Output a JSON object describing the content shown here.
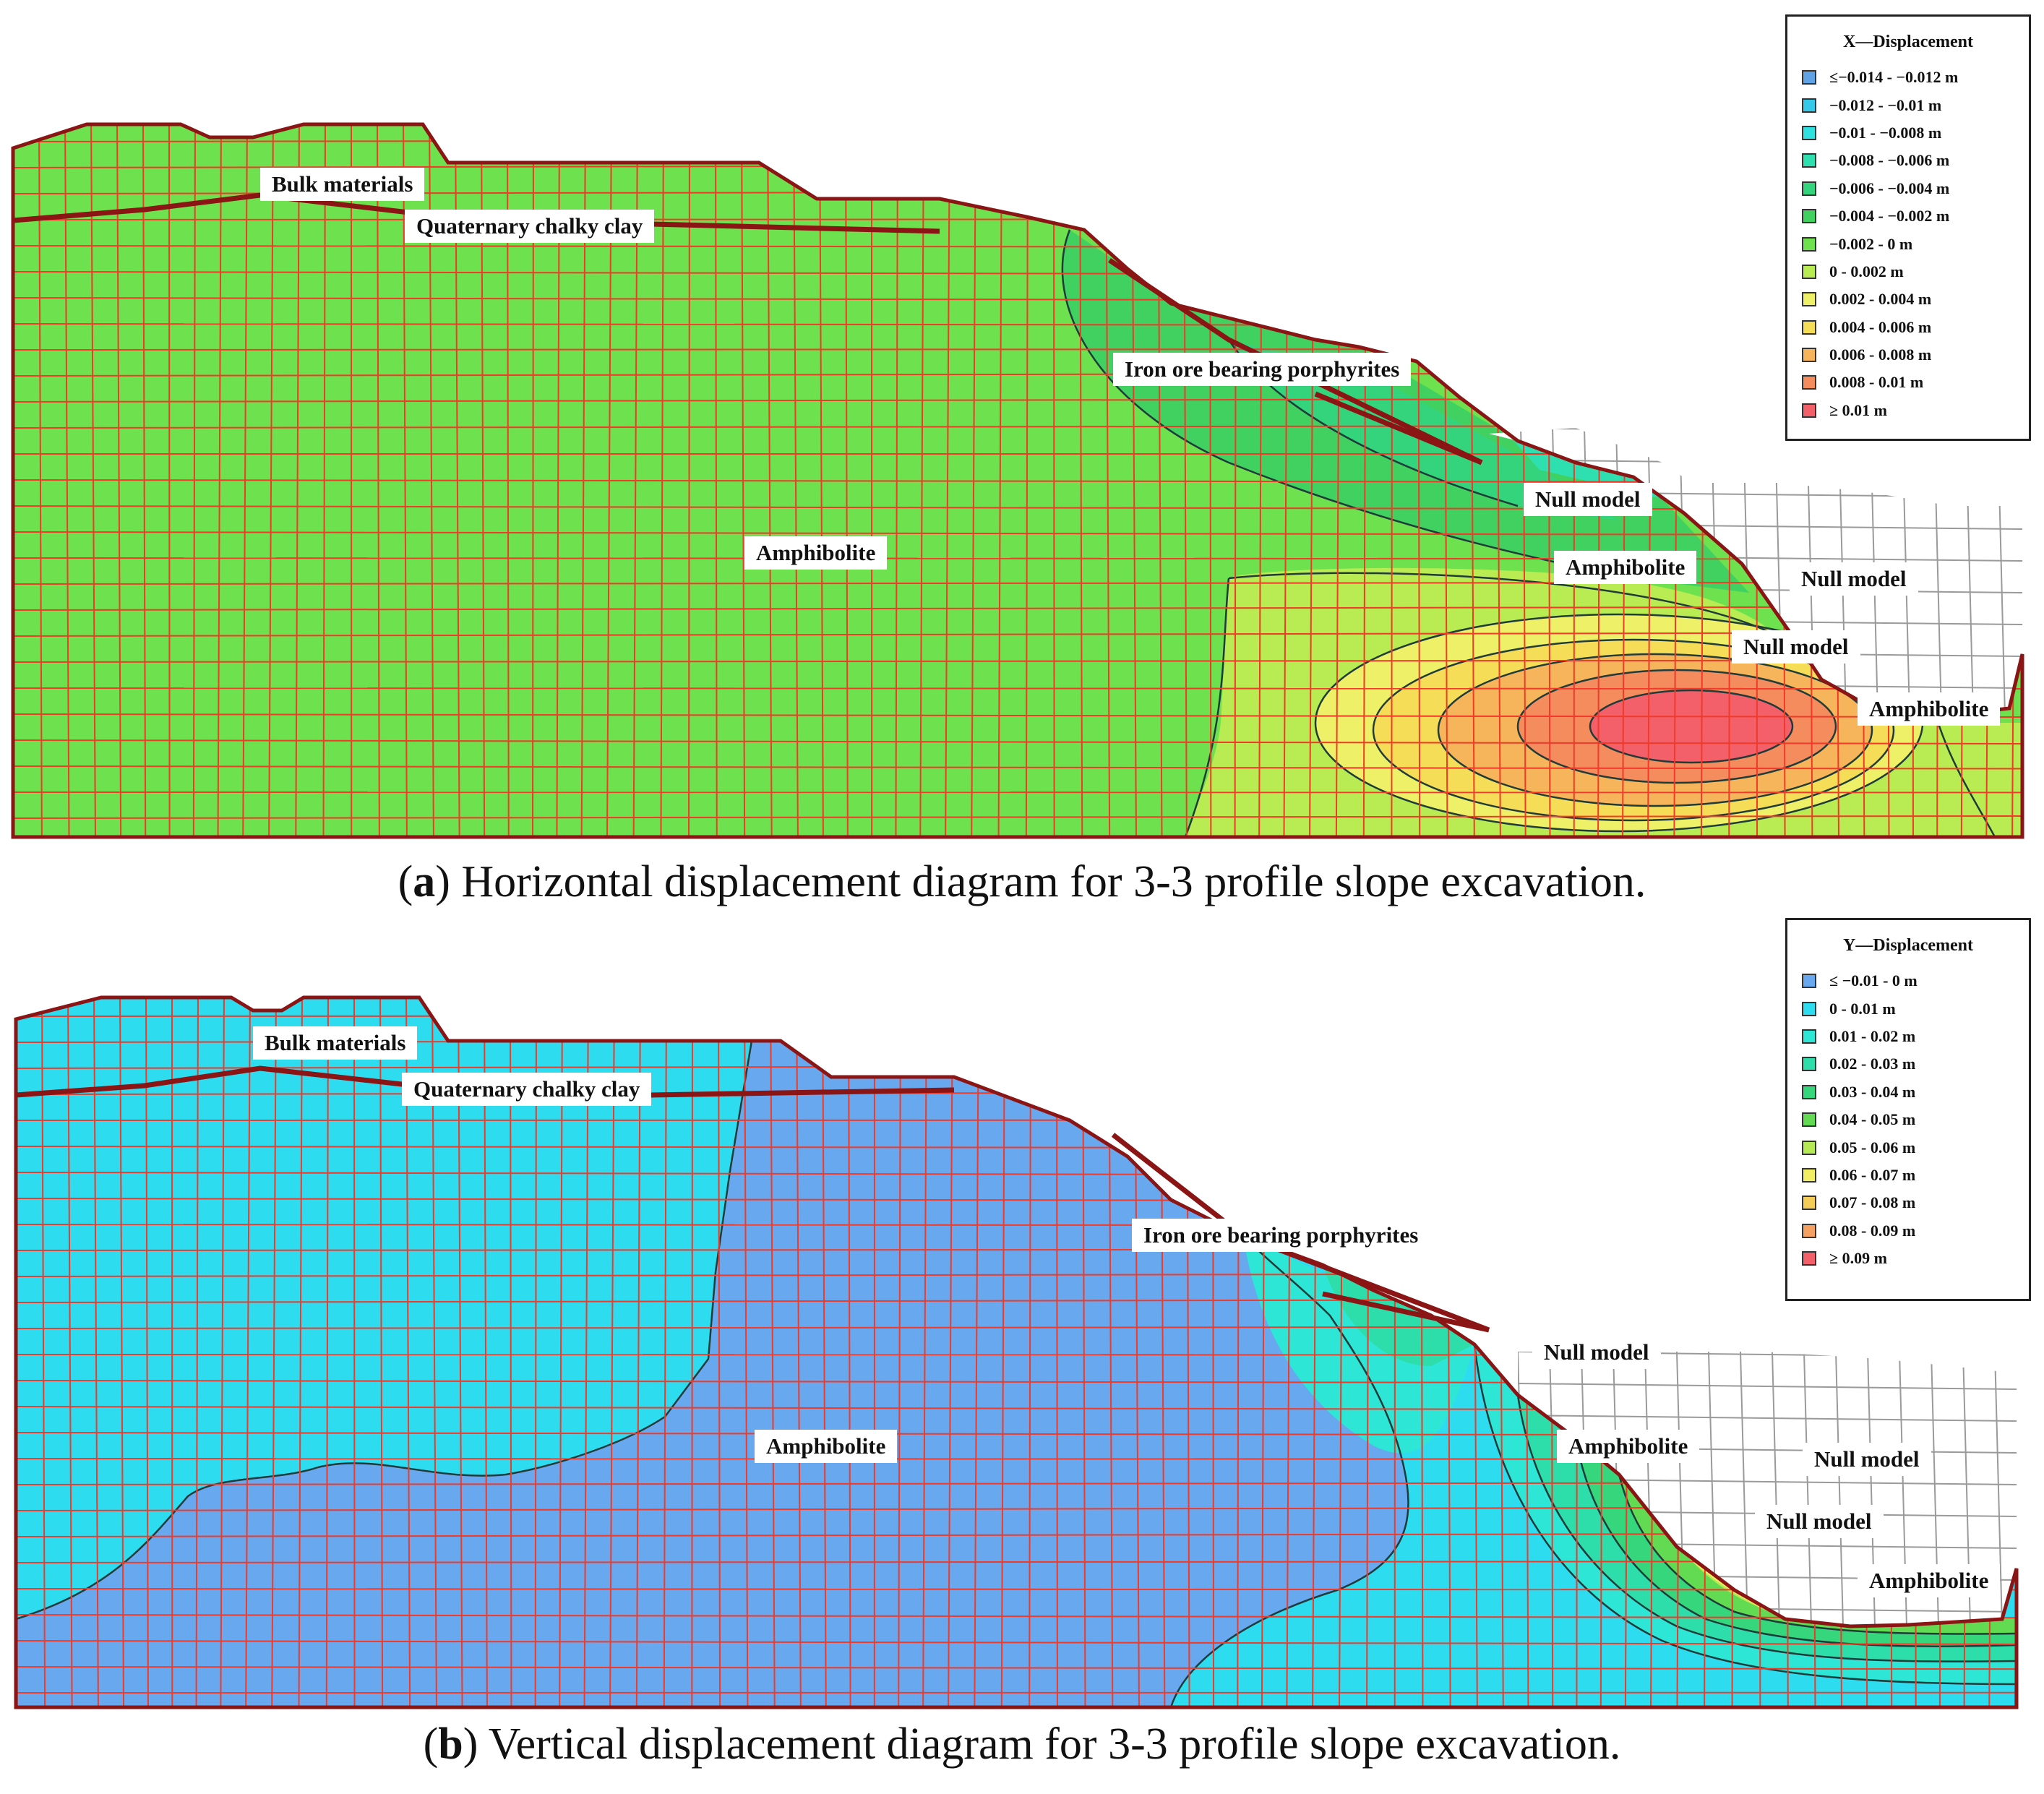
{
  "panel_a": {
    "labels": {
      "bulk": "Bulk materials",
      "clay": "Quaternary chalky clay",
      "iron": "Iron ore bearing porphyrites",
      "amph_main": "Amphibolite",
      "null1": "Null model",
      "amph2": "Amphibolite",
      "null2": "Null model",
      "null3": "Null model",
      "amph3": "Amphibolite"
    },
    "legend": {
      "title": "X—Displacement",
      "items": [
        {
          "label": "≤−0.014 - −0.012 m",
          "color": "#5fa3e6"
        },
        {
          "label": "−0.012 - −0.01 m",
          "color": "#36c8e8"
        },
        {
          "label": "−0.01 - −0.008 m",
          "color": "#2ee0e0"
        },
        {
          "label": "−0.008 - −0.006 m",
          "color": "#2ee0b0"
        },
        {
          "label": "−0.006 - −0.004 m",
          "color": "#34d47c"
        },
        {
          "label": "−0.004 - −0.002 m",
          "color": "#40d160"
        },
        {
          "label": "−0.002 - 0 m",
          "color": "#6ee14e"
        },
        {
          "label": "0 - 0.002 m",
          "color": "#b9ec52"
        },
        {
          "label": "0.002 - 0.004 m",
          "color": "#eef168"
        },
        {
          "label": "0.004 - 0.006 m",
          "color": "#f6dd57"
        },
        {
          "label": "0.006 - 0.008 m",
          "color": "#f6b55a"
        },
        {
          "label": "0.008 - 0.01 m",
          "color": "#f48c5e"
        },
        {
          "label": "≥ 0.01 m",
          "color": "#f3606a"
        }
      ]
    },
    "caption_letter": "a",
    "caption_text": "Horizontal displacement diagram for 3-3 profile slope excavation."
  },
  "panel_b": {
    "labels": {
      "bulk": "Bulk materials",
      "clay": "Quaternary chalky clay",
      "iron": "Iron ore bearing porphyrites",
      "amph_main": "Amphibolite",
      "null1": "Null model",
      "amph2": "Amphibolite",
      "null2": "Null model",
      "null3": "Null model",
      "amph3": "Amphibolite"
    },
    "legend": {
      "title": "Y—Displacement",
      "items": [
        {
          "label": "≤ −0.01 - 0 m",
          "color": "#68a8ee"
        },
        {
          "label": "0 - 0.01 m",
          "color": "#2edcf0"
        },
        {
          "label": "0.01 - 0.02 m",
          "color": "#2ee6d6"
        },
        {
          "label": "0.02 - 0.03 m",
          "color": "#2edeaa"
        },
        {
          "label": "0.03 - 0.04 m",
          "color": "#36d67c"
        },
        {
          "label": "0.04 - 0.05 m",
          "color": "#62da52"
        },
        {
          "label": "0.05 - 0.06 m",
          "color": "#b6ea54"
        },
        {
          "label": "0.06 - 0.07 m",
          "color": "#f3ef64"
        },
        {
          "label": "0.07 - 0.08 m",
          "color": "#f6cc58"
        },
        {
          "label": "0.08 - 0.09 m",
          "color": "#f3a060"
        },
        {
          "label": "≥ 0.09 m",
          "color": "#f3606a"
        }
      ]
    },
    "caption_letter": "b",
    "caption_text": "Vertical displacement diagram for 3-3 profile slope excavation."
  },
  "colors": {
    "mesh": "#f03a2a",
    "contour": "#1f3b3a",
    "boundary": "#8b1414",
    "null_mesh": "#9a9a9a"
  }
}
